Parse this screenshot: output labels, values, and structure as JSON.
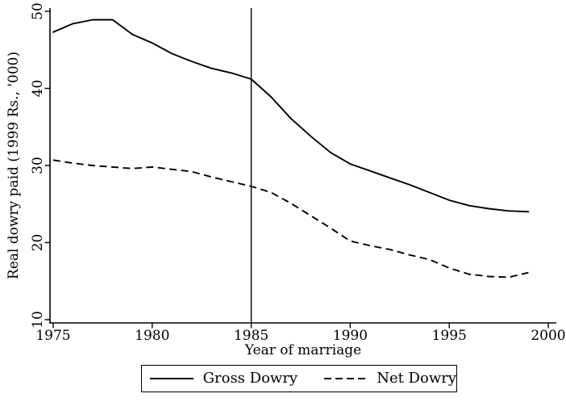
{
  "figure": {
    "background": "#ffffff",
    "line_color": "#000000"
  },
  "chart_data": {
    "type": "line",
    "title": "",
    "xlabel": "Year of marriage",
    "ylabel": "Real dowry paid (1999 Rs., '000)",
    "xlim": [
      1975,
      2000
    ],
    "ylim": [
      10,
      50
    ],
    "x_ticks": [
      1975,
      1980,
      1985,
      1990,
      1995,
      2000
    ],
    "y_ticks": [
      10,
      20,
      30,
      40,
      50
    ],
    "grid": false,
    "legend_position": "bottom",
    "reference_line_x": 1985,
    "x": [
      1975,
      1976,
      1977,
      1978,
      1979,
      1980,
      1981,
      1982,
      1983,
      1984,
      1985,
      1986,
      1987,
      1988,
      1989,
      1990,
      1991,
      1992,
      1993,
      1994,
      1995,
      1996,
      1997,
      1998,
      1999
    ],
    "series": [
      {
        "name": "Gross Dowry",
        "style": "solid",
        "values": [
          47.3,
          48.4,
          48.9,
          48.9,
          47.0,
          45.9,
          44.5,
          43.5,
          42.6,
          42.0,
          41.2,
          38.9,
          36.1,
          33.8,
          31.7,
          30.2,
          29.3,
          28.4,
          27.5,
          26.5,
          25.5,
          24.8,
          24.4,
          24.1,
          24.0
        ]
      },
      {
        "name": "Net Dowry",
        "style": "dashed",
        "values": [
          30.7,
          30.3,
          30.0,
          29.8,
          29.6,
          29.8,
          29.5,
          29.2,
          28.5,
          27.9,
          27.3,
          26.5,
          25.1,
          23.5,
          21.9,
          20.2,
          19.6,
          19.1,
          18.4,
          17.8,
          16.7,
          15.9,
          15.6,
          15.5,
          16.1
        ]
      }
    ]
  }
}
